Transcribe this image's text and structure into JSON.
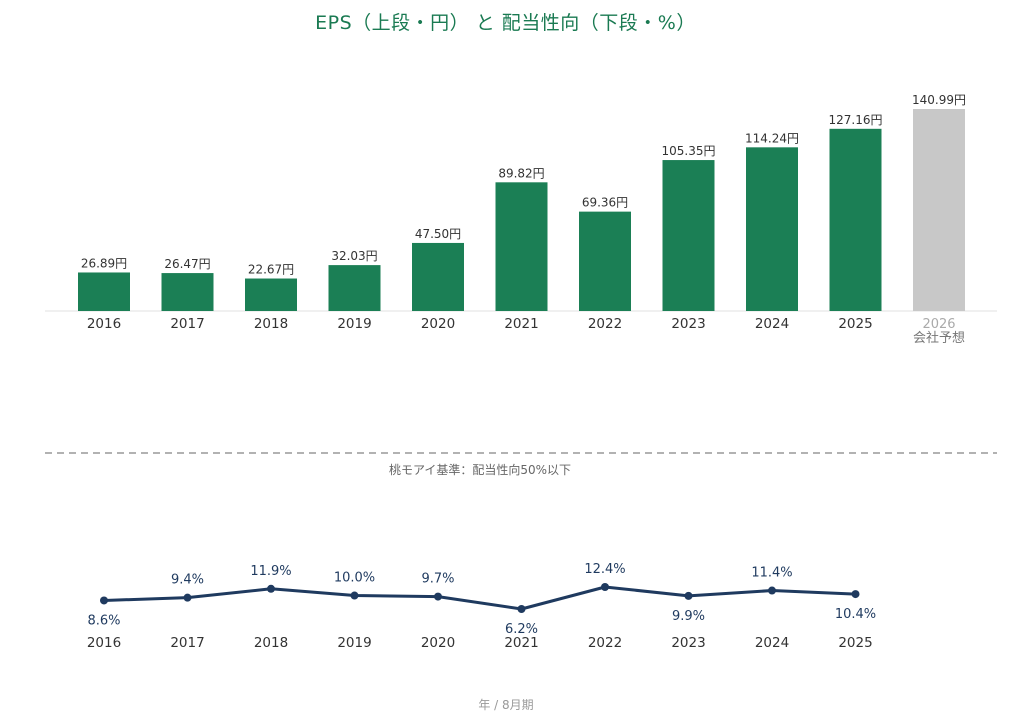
{
  "title": "EPS（上段・円） と 配当性向（下段・%）",
  "colors": {
    "eps_bar": "#1b7f55",
    "forecast_bar": "#c8c8c8",
    "payout_line": "#1f3a5f",
    "title": "#1a7a52",
    "separator": "#999999"
  },
  "chart_data": [
    {
      "type": "bar",
      "categories": [
        "2016",
        "2017",
        "2018",
        "2019",
        "2020",
        "2021",
        "2022",
        "2023",
        "2024",
        "2025",
        "2026"
      ],
      "values": [
        26.89,
        26.47,
        22.67,
        32.03,
        47.5,
        89.82,
        69.36,
        105.35,
        114.24,
        127.16,
        140.99
      ],
      "value_labels": [
        "26.89円",
        "26.47円",
        "22.67円",
        "32.03円",
        "47.50円",
        "89.82円",
        "69.36円",
        "105.35円",
        "114.24円",
        "127.16円",
        "140.99円"
      ],
      "forecast_index": 10,
      "forecast_sublabel": "会社予想",
      "unit": "円",
      "ylim": [
        0,
        140.99
      ],
      "grid": false
    },
    {
      "type": "line",
      "categories": [
        "2016",
        "2017",
        "2018",
        "2019",
        "2020",
        "2021",
        "2022",
        "2023",
        "2024",
        "2025"
      ],
      "values": [
        8.6,
        9.4,
        11.9,
        10.0,
        9.7,
        6.2,
        12.4,
        9.9,
        11.4,
        10.4
      ],
      "value_labels": [
        "8.6%",
        "9.4%",
        "11.9%",
        "10.0%",
        "9.7%",
        "6.2%",
        "12.4%",
        "9.9%",
        "11.4%",
        "10.4%"
      ],
      "unit": "%",
      "annotation": "桃モアイ基準：配当性向50%以下",
      "grid": false
    }
  ],
  "footer": "年 / 8月期"
}
